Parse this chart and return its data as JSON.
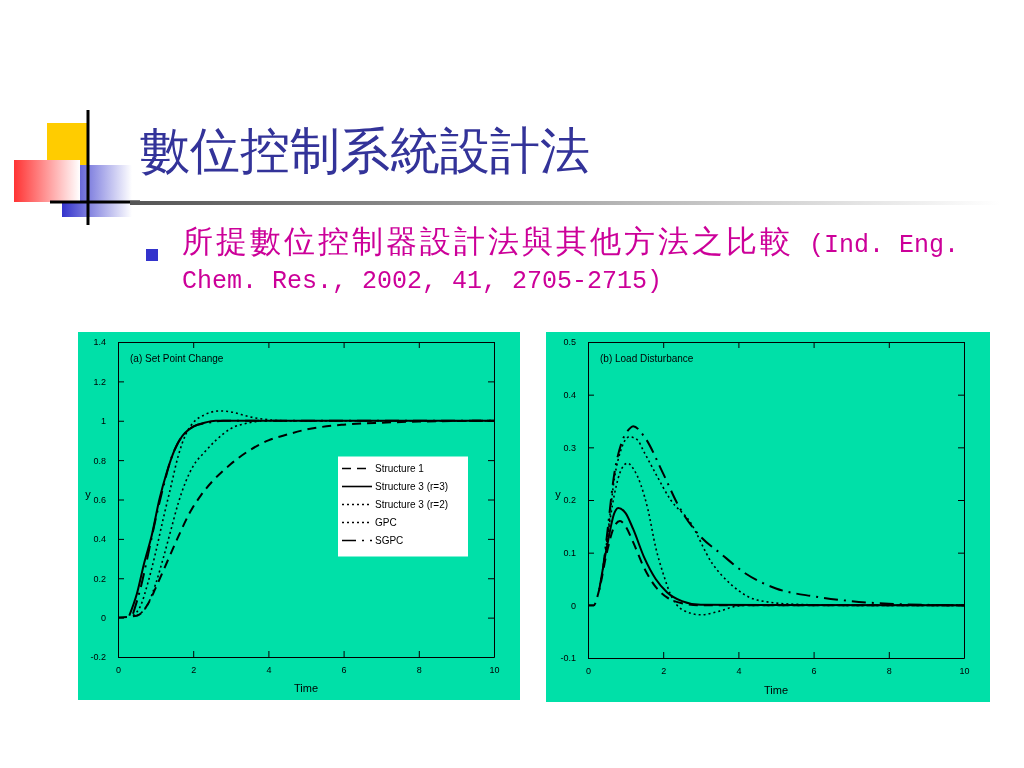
{
  "chart_data": [
    {
      "type": "line",
      "title": "數位控制系統設計法",
      "subtitle": "所提數位控制器設計法與其他方法之比較 (Ind. Eng. Chem. Res., 2002, 41, 2705-2715)",
      "annotations": [
        "(a) Set Point Change"
      ],
      "xlabel": "Time",
      "ylabel": "y",
      "xlim": [
        0,
        10
      ],
      "xticks": [
        0,
        2,
        4,
        6,
        8,
        10
      ],
      "ylim": [
        -0.2,
        1.4
      ],
      "yticks": [
        -0.2,
        0,
        0.2,
        0.4,
        0.6,
        0.8,
        1,
        1.2,
        1.4
      ],
      "grid": false,
      "legend": "right",
      "marker": "none",
      "series": [
        {
          "name": "Structure 1",
          "color": "#000000",
          "line_style": "dashed",
          "x": [
            0,
            0.5,
            0.8,
            1,
            1.3,
            1.6,
            1.9,
            2.2,
            2.5,
            3,
            3.5,
            4,
            4.5,
            5,
            6,
            7,
            8,
            10
          ],
          "values": [
            0,
            0.01,
            0.07,
            0.15,
            0.28,
            0.41,
            0.53,
            0.62,
            0.69,
            0.78,
            0.85,
            0.9,
            0.93,
            0.955,
            0.98,
            0.99,
            0.996,
            1
          ]
        },
        {
          "name": "Structure 3 (r=3)",
          "color": "#000000",
          "line_style": "solid",
          "x": [
            0.3,
            0.5,
            0.7,
            0.9,
            1.1,
            1.3,
            1.5,
            1.7,
            2,
            2.3,
            2.6,
            10
          ],
          "values": [
            0.01,
            0.12,
            0.28,
            0.42,
            0.6,
            0.74,
            0.85,
            0.92,
            0.97,
            0.99,
            1,
            1
          ]
        },
        {
          "name": "Structure 3 (r=2)",
          "color": "#000000",
          "line_style": "dotted",
          "x": [
            0.5,
            0.8,
            1,
            1.2,
            1.4,
            1.6,
            1.8,
            2,
            2.3,
            2.6,
            3,
            3.5,
            4,
            10
          ],
          "values": [
            0.01,
            0.07,
            0.17,
            0.3,
            0.44,
            0.58,
            0.69,
            0.77,
            0.84,
            0.9,
            0.96,
            0.99,
            1,
            1
          ]
        },
        {
          "name": "GPC",
          "color": "#000000",
          "line_style": "dotted",
          "x": [
            0.4,
            0.6,
            0.8,
            1,
            1.2,
            1.4,
            1.6,
            1.8,
            2,
            2.3,
            2.7,
            3,
            3.5,
            4,
            4.5,
            10
          ],
          "values": [
            0.01,
            0.06,
            0.18,
            0.33,
            0.5,
            0.66,
            0.82,
            0.93,
            0.99,
            1.03,
            1.05,
            1.045,
            1.02,
            1.005,
            1,
            1
          ]
        },
        {
          "name": "SGPC",
          "color": "#000000",
          "line_style": "dashdot",
          "x": [
            0.4,
            0.6,
            0.8,
            1,
            1.2,
            1.4,
            1.6,
            1.8,
            2,
            2.4,
            2.8,
            10
          ],
          "values": [
            0.02,
            0.15,
            0.32,
            0.5,
            0.66,
            0.8,
            0.89,
            0.94,
            0.97,
            0.99,
            1,
            1
          ]
        }
      ]
    },
    {
      "type": "line",
      "annotations": [
        "(b) Load Disturbance"
      ],
      "xlabel": "Time",
      "ylabel": "y",
      "xlim": [
        0,
        10
      ],
      "xticks": [
        0,
        2,
        4,
        6,
        8,
        10
      ],
      "ylim": [
        -0.1,
        0.5
      ],
      "yticks": [
        -0.1,
        0,
        0.1,
        0.2,
        0.3,
        0.4,
        0.5
      ],
      "grid": false,
      "legend": false,
      "marker": "none",
      "series": [
        {
          "color": "#000000",
          "line_style": "dashed",
          "x": [
            0,
            0.15,
            0.3,
            0.5,
            0.7,
            0.85,
            1,
            1.2,
            1.5,
            1.8,
            2.1,
            2.5,
            3,
            10
          ],
          "values": [
            0,
            0,
            0.03,
            0.1,
            0.15,
            0.16,
            0.15,
            0.12,
            0.07,
            0.035,
            0.015,
            0.004,
            0,
            0
          ]
        },
        {
          "color": "#000000",
          "line_style": "solid",
          "x": [
            0.3,
            0.5,
            0.7,
            0.8,
            1,
            1.2,
            1.5,
            1.8,
            2.1,
            2.5,
            3,
            10
          ],
          "values": [
            0.03,
            0.11,
            0.175,
            0.185,
            0.175,
            0.145,
            0.09,
            0.05,
            0.025,
            0.008,
            0.001,
            0
          ]
        },
        {
          "color": "#000000",
          "line_style": "dotted",
          "x": [
            0.3,
            0.5,
            0.7,
            0.9,
            1.1,
            1.3,
            1.5,
            1.8,
            2.2,
            2.7,
            3.3,
            3.8,
            4.5,
            5.5,
            7,
            10
          ],
          "values": [
            0.03,
            0.12,
            0.24,
            0.3,
            0.32,
            0.315,
            0.29,
            0.25,
            0.2,
            0.16,
            0.08,
            0.04,
            0.01,
            0.002,
            0,
            0
          ]
        },
        {
          "color": "#000000",
          "line_style": "dotted",
          "x": [
            0.5,
            0.7,
            0.9,
            1.05,
            1.2,
            1.4,
            1.6,
            1.8,
            2,
            2.2,
            2.5,
            3,
            3.5,
            4,
            4.5,
            10
          ],
          "values": [
            0.12,
            0.21,
            0.26,
            0.27,
            0.26,
            0.23,
            0.18,
            0.11,
            0.06,
            0.02,
            -0.008,
            -0.018,
            -0.011,
            -0.001,
            0,
            0
          ]
        },
        {
          "color": "#000000",
          "line_style": "dashdot",
          "x": [
            0.4,
            0.5,
            0.7,
            0.9,
            1.1,
            1.2,
            1.5,
            2,
            2.4,
            3,
            3.5,
            4.2,
            5,
            6,
            7,
            8,
            10
          ],
          "values": [
            0.07,
            0.13,
            0.25,
            0.31,
            0.335,
            0.34,
            0.32,
            0.25,
            0.19,
            0.13,
            0.1,
            0.06,
            0.032,
            0.017,
            0.008,
            0.003,
            0
          ]
        }
      ]
    }
  ]
}
